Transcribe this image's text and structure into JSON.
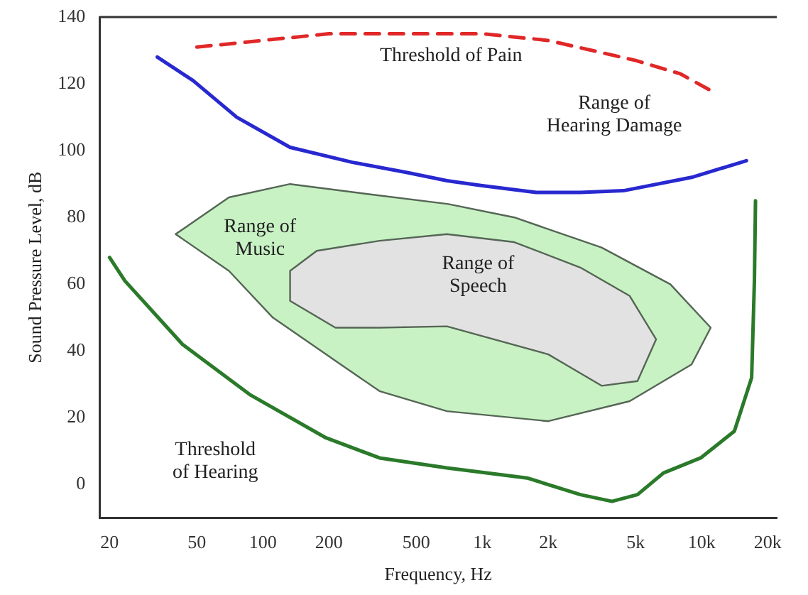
{
  "chart_data": {
    "type": "line",
    "xlabel": "Frequency, Hz",
    "ylabel": "Sound Pressure Level, dB",
    "log": "x",
    "xlim": [
      18,
      22000
    ],
    "ylim": [
      -10,
      140
    ],
    "xticks": [
      20,
      50,
      100,
      200,
      500,
      {
        "value": 1000,
        "label": "1k"
      },
      {
        "value": 2000,
        "label": "2k"
      },
      {
        "value": 5000,
        "label": "5k"
      },
      {
        "value": 10000,
        "label": "10k"
      },
      {
        "value": 20000,
        "label": "20k"
      }
    ],
    "yticks": [
      0,
      20,
      40,
      60,
      80,
      100,
      120,
      140
    ],
    "grid": false,
    "legend": false,
    "marker": "none",
    "series": [
      {
        "type": "area",
        "color": "#c8f2c4",
        "x": [
          40,
          70,
          133,
          300,
          700,
          1400,
          3500,
          7200,
          11000,
          9000,
          4700,
          2000,
          690,
          340,
          194,
          111,
          70,
          40
        ],
        "values": [
          75,
          86,
          90,
          87,
          84,
          80,
          71,
          60,
          47,
          36,
          25,
          19,
          22,
          28,
          39,
          50,
          64,
          75
        ]
      },
      {
        "type": "area",
        "color": "#e2e2e2",
        "x": [
          133,
          176,
          340,
          690,
          1400,
          2800,
          4700,
          6200,
          5100,
          3500,
          2000,
          690,
          340,
          214,
          133,
          133
        ],
        "values": [
          64,
          70,
          73,
          75,
          72.6,
          65,
          56.5,
          43.5,
          31,
          29.6,
          39,
          47.4,
          47,
          47,
          55,
          64
        ]
      },
      {
        "color": "#e02828",
        "line_style": "dashed",
        "x": [
          50,
          100,
          200,
          500,
          1000,
          2000,
          5000,
          8000,
          11000
        ],
        "values": [
          131,
          133,
          135,
          135,
          135,
          133,
          127,
          123,
          118
        ]
      },
      {
        "color": "#2828d0",
        "line_style": "solid",
        "x": [
          33,
          48,
          76,
          133,
          256,
          450,
          690,
          1000,
          1760,
          2800,
          4400,
          9000,
          16000
        ],
        "values": [
          128,
          121,
          110,
          101,
          96.5,
          93.5,
          91,
          89.5,
          87.5,
          87.5,
          88,
          92,
          97
        ]
      },
      {
        "color": "#2a7a2a",
        "line_style": "solid",
        "x": [
          20,
          23.5,
          43,
          87,
          194,
          340,
          690,
          1600,
          2800,
          3900,
          5100,
          6700,
          9900,
          14100,
          16900,
          17400,
          17600
        ],
        "values": [
          68,
          61,
          42,
          27,
          14,
          8,
          5,
          2,
          -3,
          -5,
          -3,
          3.5,
          8,
          16,
          32,
          61,
          85
        ]
      }
    ],
    "annotations": [
      "Threshold of Pain",
      "Range of\nHearing Damage",
      "Range of\nMusic",
      "Range of\nSpeech",
      "Threshold\nof Hearing"
    ]
  }
}
